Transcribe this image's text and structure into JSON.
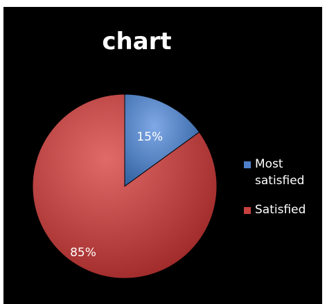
{
  "chart_data": {
    "type": "pie",
    "title": "chart",
    "categories": [
      "Most satisfied",
      "Satisfied"
    ],
    "values": [
      15,
      85
    ],
    "data_labels": [
      "15%",
      "85%"
    ],
    "colors": [
      "#4f7fc9",
      "#c8413f"
    ],
    "legend_position": "right",
    "legend": [
      {
        "label": "Most satisfied",
        "color": "#4f7fc9"
      },
      {
        "label": "Satisfied",
        "color": "#c8413f"
      }
    ]
  }
}
